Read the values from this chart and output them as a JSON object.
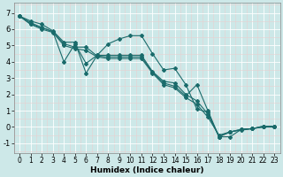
{
  "xlabel": "Humidex (Indice chaleur)",
  "bg_color": "#cde8e8",
  "grid_color": "#ffffff",
  "grid_minor_color": "#e8d0d0",
  "line_color": "#1a6b6b",
  "xlim": [
    -0.5,
    23.5
  ],
  "ylim": [
    -1.6,
    7.6
  ],
  "xticks": [
    0,
    1,
    2,
    3,
    4,
    5,
    6,
    7,
    8,
    9,
    10,
    11,
    12,
    13,
    14,
    15,
    16,
    17,
    18,
    19,
    20,
    21,
    22,
    23
  ],
  "yticks": [
    -1,
    0,
    1,
    2,
    3,
    4,
    5,
    6,
    7
  ],
  "lines": [
    {
      "x": [
        0,
        1,
        2,
        3,
        4,
        5,
        6,
        7,
        8,
        9,
        10,
        11,
        12,
        13,
        14,
        15,
        16,
        17,
        18,
        19,
        20,
        21,
        22,
        23
      ],
      "y": [
        6.8,
        6.5,
        6.3,
        5.9,
        5.2,
        5.2,
        3.3,
        4.4,
        5.1,
        5.4,
        5.6,
        5.6,
        4.5,
        3.5,
        3.6,
        2.6,
        1.1,
        0.9,
        -0.6,
        -0.3,
        -0.15,
        -0.1,
        0.05,
        0.05
      ]
    },
    {
      "x": [
        0,
        1,
        2,
        3,
        4,
        5,
        6,
        7,
        8,
        9,
        10,
        11,
        12,
        13,
        14,
        15,
        16,
        17,
        18,
        19,
        20,
        21,
        22,
        23
      ],
      "y": [
        6.8,
        6.4,
        6.1,
        5.85,
        4.0,
        5.1,
        3.9,
        4.4,
        4.4,
        4.4,
        4.4,
        4.4,
        3.4,
        2.8,
        2.7,
        2.0,
        1.6,
        0.8,
        -0.6,
        -0.3,
        -0.15,
        -0.1,
        0.05,
        0.05
      ]
    },
    {
      "x": [
        0,
        1,
        2,
        3,
        4,
        5,
        6,
        7,
        8,
        9,
        10,
        11,
        12,
        13,
        14,
        15,
        16,
        17,
        18,
        19,
        20,
        21,
        22,
        23
      ],
      "y": [
        6.8,
        6.3,
        6.1,
        5.85,
        5.1,
        4.9,
        4.9,
        4.35,
        4.3,
        4.3,
        4.3,
        4.3,
        3.35,
        2.7,
        2.5,
        1.9,
        2.6,
        1.0,
        -0.6,
        -0.6,
        -0.15,
        -0.1,
        0.0,
        0.0
      ]
    },
    {
      "x": [
        0,
        1,
        2,
        3,
        4,
        5,
        6,
        7,
        8,
        9,
        10,
        11,
        12,
        13,
        14,
        15,
        16,
        17,
        18,
        19,
        20,
        21,
        22,
        23
      ],
      "y": [
        6.8,
        6.3,
        6.0,
        5.8,
        5.0,
        4.8,
        4.7,
        4.3,
        4.2,
        4.2,
        4.2,
        4.2,
        3.3,
        2.6,
        2.4,
        1.8,
        1.4,
        0.6,
        -0.5,
        -0.3,
        -0.2,
        -0.1,
        0.0,
        0.0
      ]
    }
  ]
}
